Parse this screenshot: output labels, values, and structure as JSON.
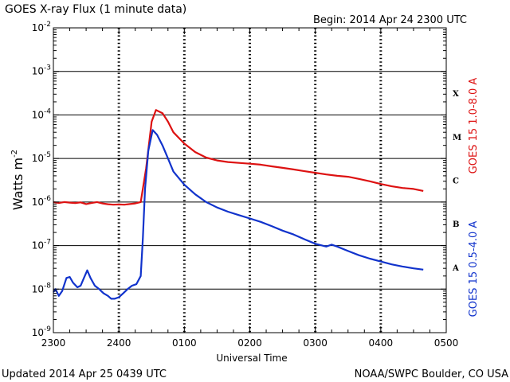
{
  "chart_data": {
    "type": "line",
    "title": "GOES X-ray Flux (1 minute data)",
    "begin_label": "Begin:  2014 Apr 24  2300 UTC",
    "xlabel": "Universal Time",
    "ylabel": "Watts m",
    "ylabel_superscript": "-2",
    "yscale": "log",
    "ylim": [
      1e-09,
      0.01
    ],
    "xlim_hours": [
      0,
      6
    ],
    "x_ticks": [
      "2300",
      "2400",
      "0100",
      "0200",
      "0300",
      "0400",
      "0500"
    ],
    "y_ticks": [
      {
        "base": "10",
        "exp": "-9"
      },
      {
        "base": "10",
        "exp": "-8"
      },
      {
        "base": "10",
        "exp": "-7"
      },
      {
        "base": "10",
        "exp": "-6"
      },
      {
        "base": "10",
        "exp": "-5"
      },
      {
        "base": "10",
        "exp": "-4"
      },
      {
        "base": "10",
        "exp": "-3"
      },
      {
        "base": "10",
        "exp": "-2"
      }
    ],
    "flare_classes": [
      "A",
      "B",
      "C",
      "M",
      "X"
    ],
    "grid": true,
    "series": [
      {
        "name": "GOES 15  1.0-8.0 A",
        "color": "#dd1111",
        "points": [
          [
            "2300",
            1e-06
          ],
          [
            "2305",
            9.5e-07
          ],
          [
            "2310",
            1e-06
          ],
          [
            "2315",
            9.7e-07
          ],
          [
            "2320",
            9.5e-07
          ],
          [
            "2325",
            9.8e-07
          ],
          [
            "2330",
            9e-07
          ],
          [
            "2335",
            9.5e-07
          ],
          [
            "2340",
            1e-06
          ],
          [
            "2345",
            9.3e-07
          ],
          [
            "2350",
            8.9e-07
          ],
          [
            "2355",
            8.7e-07
          ],
          [
            "2400",
            8.8e-07
          ],
          [
            "2405",
            8.7e-07
          ],
          [
            "2410",
            9e-07
          ],
          [
            "2415",
            9.3e-07
          ],
          [
            "2420",
            1e-06
          ],
          [
            "2425",
            6e-06
          ],
          [
            "2430",
            7e-05
          ],
          [
            "2434",
            0.00013
          ],
          [
            "2440",
            0.00011
          ],
          [
            "2445",
            7e-05
          ],
          [
            "2450",
            4e-05
          ],
          [
            "0100",
            2.2e-05
          ],
          [
            "0110",
            1.4e-05
          ],
          [
            "0120",
            1.05e-05
          ],
          [
            "0130",
            9e-06
          ],
          [
            "0140",
            8.3e-06
          ],
          [
            "0150",
            7.9e-06
          ],
          [
            "0200",
            7.6e-06
          ],
          [
            "0210",
            7.2e-06
          ],
          [
            "0220",
            6.6e-06
          ],
          [
            "0230",
            6.1e-06
          ],
          [
            "0240",
            5.6e-06
          ],
          [
            "0250",
            5.1e-06
          ],
          [
            "0300",
            4.7e-06
          ],
          [
            "0310",
            4.3e-06
          ],
          [
            "0320",
            4e-06
          ],
          [
            "0330",
            3.8e-06
          ],
          [
            "0340",
            3.4e-06
          ],
          [
            "0350",
            3e-06
          ],
          [
            "0400",
            2.6e-06
          ],
          [
            "0410",
            2.3e-06
          ],
          [
            "0420",
            2.1e-06
          ],
          [
            "0430",
            2e-06
          ],
          [
            "0439",
            1.8e-06
          ]
        ]
      },
      {
        "name": "GOES 15  0.5-4.0 A",
        "color": "#1133cc",
        "points": [
          [
            "2300",
            8.5e-09
          ],
          [
            "2302",
            1e-08
          ],
          [
            "2305",
            7e-09
          ],
          [
            "2308",
            9e-09
          ],
          [
            "2312",
            1.8e-08
          ],
          [
            "2315",
            1.9e-08
          ],
          [
            "2318",
            1.4e-08
          ],
          [
            "2322",
            1.1e-08
          ],
          [
            "2325",
            1.2e-08
          ],
          [
            "2328",
            1.8e-08
          ],
          [
            "2331",
            2.7e-08
          ],
          [
            "2334",
            1.8e-08
          ],
          [
            "2338",
            1.2e-08
          ],
          [
            "2342",
            1e-08
          ],
          [
            "2346",
            8e-09
          ],
          [
            "2350",
            7e-09
          ],
          [
            "2353",
            6e-09
          ],
          [
            "2356",
            6e-09
          ],
          [
            "2400",
            6.5e-09
          ],
          [
            "2404",
            8e-09
          ],
          [
            "2408",
            1e-08
          ],
          [
            "2412",
            1.2e-08
          ],
          [
            "2416",
            1.3e-08
          ],
          [
            "2420",
            2e-08
          ],
          [
            "2422",
            1.5e-07
          ],
          [
            "2424",
            2e-06
          ],
          [
            "2427",
            1.5e-05
          ],
          [
            "2431",
            4.5e-05
          ],
          [
            "2435",
            3.5e-05
          ],
          [
            "2440",
            2e-05
          ],
          [
            "2445",
            1e-05
          ],
          [
            "2450",
            5e-06
          ],
          [
            "0100",
            2.5e-06
          ],
          [
            "0110",
            1.5e-06
          ],
          [
            "0120",
            1e-06
          ],
          [
            "0130",
            7.5e-07
          ],
          [
            "0140",
            6e-07
          ],
          [
            "0150",
            5e-07
          ],
          [
            "0200",
            4.2e-07
          ],
          [
            "0210",
            3.5e-07
          ],
          [
            "0220",
            2.8e-07
          ],
          [
            "0230",
            2.2e-07
          ],
          [
            "0240",
            1.8e-07
          ],
          [
            "0250",
            1.4e-07
          ],
          [
            "0300",
            1.1e-07
          ],
          [
            "0310",
            9.5e-08
          ],
          [
            "0315",
            1.05e-07
          ],
          [
            "0320",
            9.5e-08
          ],
          [
            "0330",
            7.5e-08
          ],
          [
            "0340",
            6e-08
          ],
          [
            "0350",
            5e-08
          ],
          [
            "0400",
            4.3e-08
          ],
          [
            "0410",
            3.7e-08
          ],
          [
            "0420",
            3.3e-08
          ],
          [
            "0430",
            3e-08
          ],
          [
            "0439",
            2.8e-08
          ]
        ]
      }
    ]
  },
  "footer": {
    "updated": "Updated 2014 Apr 25 0439 UTC",
    "credit": "NOAA/SWPC Boulder, CO USA"
  }
}
